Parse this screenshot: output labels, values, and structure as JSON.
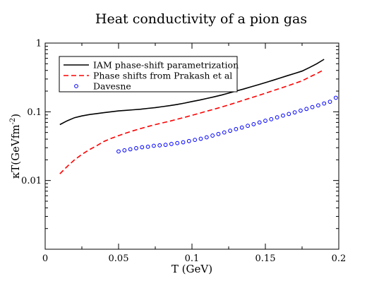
{
  "chart_data": {
    "type": "line",
    "title": "Heat conductivity of a pion gas",
    "xlabel": "T (GeV)",
    "ylabel_main": "κT(GeVfm",
    "ylabel_sup": "-2",
    "ylabel_close": ")",
    "xlim": [
      0,
      0.2
    ],
    "ylim": [
      0.001,
      1
    ],
    "yscale": "log",
    "grid": false,
    "legend_position": "top-left",
    "x_ticks": [
      {
        "value": 0,
        "label": "0"
      },
      {
        "value": 0.05,
        "label": "0.05"
      },
      {
        "value": 0.1,
        "label": "0.1"
      },
      {
        "value": 0.15,
        "label": "0.15"
      },
      {
        "value": 0.2,
        "label": "0.2"
      }
    ],
    "y_ticks": [
      {
        "value": 0.01,
        "label": "0.01"
      },
      {
        "value": 0.1,
        "label": "0.1"
      },
      {
        "value": 1,
        "label": "1"
      }
    ],
    "series": [
      {
        "name": "IAM phase-shift parametrization",
        "style": "solid",
        "marker": "none",
        "color": "#000000",
        "x": [
          0.01,
          0.015,
          0.02,
          0.025,
          0.03,
          0.035,
          0.04,
          0.045,
          0.05,
          0.055,
          0.06,
          0.065,
          0.07,
          0.075,
          0.08,
          0.085,
          0.09,
          0.095,
          0.1,
          0.105,
          0.11,
          0.115,
          0.12,
          0.125,
          0.13,
          0.135,
          0.14,
          0.145,
          0.15,
          0.155,
          0.16,
          0.165,
          0.17,
          0.175,
          0.18,
          0.185,
          0.19
        ],
        "y": [
          0.065,
          0.074,
          0.082,
          0.087,
          0.091,
          0.094,
          0.097,
          0.1,
          0.103,
          0.105,
          0.107,
          0.109,
          0.112,
          0.115,
          0.119,
          0.123,
          0.128,
          0.134,
          0.141,
          0.148,
          0.156,
          0.165,
          0.175,
          0.187,
          0.2,
          0.214,
          0.23,
          0.247,
          0.266,
          0.287,
          0.31,
          0.335,
          0.362,
          0.391,
          0.44,
          0.5,
          0.58
        ]
      },
      {
        "name": "Phase shifts from Prakash et al",
        "style": "dashed",
        "marker": "none",
        "color": "#ff0000",
        "x": [
          0.01,
          0.015,
          0.02,
          0.025,
          0.03,
          0.035,
          0.04,
          0.045,
          0.05,
          0.055,
          0.06,
          0.065,
          0.07,
          0.075,
          0.08,
          0.085,
          0.09,
          0.095,
          0.1,
          0.105,
          0.11,
          0.115,
          0.12,
          0.125,
          0.13,
          0.135,
          0.14,
          0.145,
          0.15,
          0.155,
          0.16,
          0.165,
          0.17,
          0.175,
          0.18,
          0.185,
          0.19
        ],
        "y": [
          0.0125,
          0.016,
          0.02,
          0.024,
          0.028,
          0.032,
          0.037,
          0.041,
          0.045,
          0.049,
          0.053,
          0.057,
          0.061,
          0.065,
          0.069,
          0.073,
          0.078,
          0.083,
          0.089,
          0.095,
          0.102,
          0.109,
          0.117,
          0.126,
          0.136,
          0.147,
          0.159,
          0.172,
          0.186,
          0.202,
          0.219,
          0.238,
          0.259,
          0.282,
          0.32,
          0.36,
          0.41
        ]
      },
      {
        "name": "Davesne",
        "style": "none",
        "marker": "circle",
        "color": "#0000ff",
        "x": [
          0.05,
          0.054,
          0.058,
          0.062,
          0.066,
          0.07,
          0.074,
          0.078,
          0.082,
          0.086,
          0.09,
          0.094,
          0.098,
          0.102,
          0.106,
          0.11,
          0.114,
          0.118,
          0.122,
          0.126,
          0.13,
          0.134,
          0.138,
          0.142,
          0.146,
          0.15,
          0.154,
          0.158,
          0.162,
          0.166,
          0.17,
          0.174,
          0.178,
          0.182,
          0.186,
          0.19,
          0.194,
          0.198
        ],
        "y": [
          0.0265,
          0.0275,
          0.0285,
          0.0295,
          0.0305,
          0.031,
          0.032,
          0.0325,
          0.033,
          0.034,
          0.035,
          0.036,
          0.0375,
          0.039,
          0.0405,
          0.0425,
          0.045,
          0.0475,
          0.05,
          0.053,
          0.056,
          0.059,
          0.0625,
          0.066,
          0.07,
          0.074,
          0.078,
          0.083,
          0.088,
          0.093,
          0.098,
          0.104,
          0.11,
          0.117,
          0.124,
          0.132,
          0.14,
          0.16
        ]
      }
    ]
  }
}
